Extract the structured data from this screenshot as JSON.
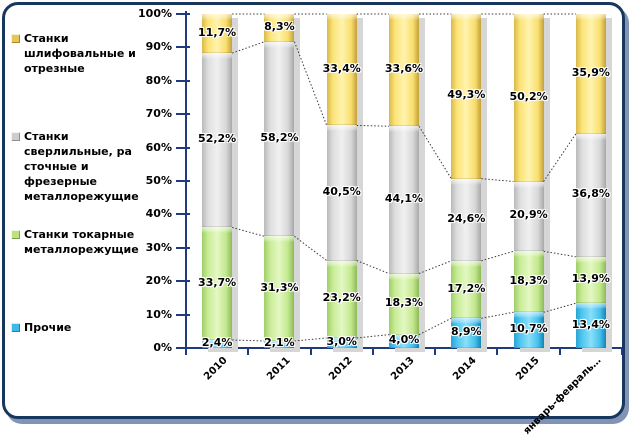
{
  "legend": {
    "items": [
      {
        "key": "grinding",
        "label": "Станки\nшлифовальные и\nотрезные",
        "color": "#E8C656"
      },
      {
        "key": "drilling",
        "label": "Станки\nсверлильные, ра\nсточные и\nфрезерные\nметаллорежущие",
        "color": "#CDCDCD"
      },
      {
        "key": "turning",
        "label": "Станки токарные\nметаллорежущие",
        "color": "#BCE380"
      },
      {
        "key": "other",
        "label": "Прочие",
        "color": "#41B9E6"
      }
    ]
  },
  "chart_data": {
    "type": "bar",
    "subtype": "stacked-100-percent",
    "title": "",
    "xlabel": "",
    "ylabel": "",
    "ylim": [
      0,
      100
    ],
    "grid": false,
    "legend_position": "left",
    "series_lines": "dotted",
    "axis_color": "#203A7E",
    "categories": [
      "2010",
      "2011",
      "2012",
      "2013",
      "2014",
      "2015",
      "январь-февраль…"
    ],
    "y_ticks": [
      "0%",
      "10%",
      "20%",
      "30%",
      "40%",
      "50%",
      "60%",
      "70%",
      "80%",
      "90%",
      "100%"
    ],
    "series": [
      {
        "name": "Прочие",
        "color": "#45C0EC",
        "values": [
          2.4,
          2.1,
          3.0,
          4.0,
          8.9,
          10.7,
          13.4
        ]
      },
      {
        "name": "Станки токарные металлорежущие",
        "color": "#C3E88E",
        "values": [
          33.7,
          31.3,
          23.2,
          18.3,
          17.2,
          18.3,
          13.9
        ]
      },
      {
        "name": "Станки сверлильные, расточные и фрезерные металлорежущие",
        "color": "#D8D8D8",
        "values": [
          52.2,
          58.2,
          40.5,
          44.1,
          24.6,
          20.9,
          36.8
        ]
      },
      {
        "name": "Станки шлифовальные и отрезные",
        "color": "#F9DF6E",
        "values": [
          11.7,
          8.3,
          33.4,
          33.6,
          49.3,
          50.2,
          35.9
        ]
      }
    ],
    "label_format": "#,#0,0% (comma decimal)"
  }
}
